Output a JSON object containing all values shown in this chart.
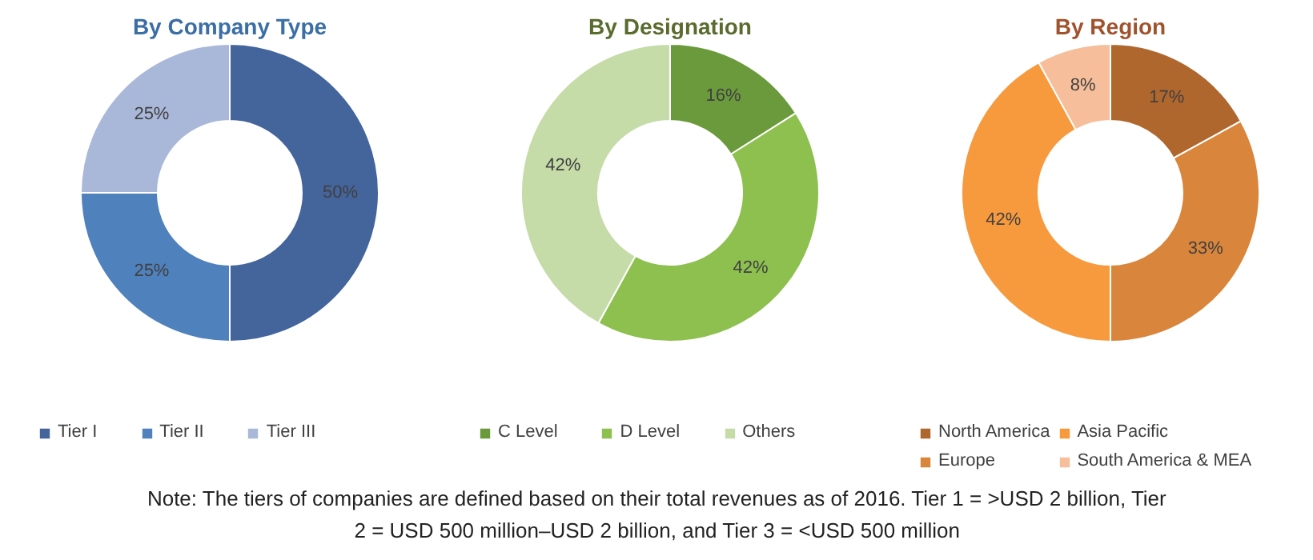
{
  "chart_data": [
    {
      "type": "donut",
      "title": "By Company Type",
      "categories": [
        "Tier I",
        "Tier II",
        "Tier III"
      ],
      "values": [
        50,
        25,
        25
      ],
      "colors": [
        "#44649c",
        "#4f81bd",
        "#a9b8d9"
      ],
      "value_labels": [
        "50%",
        "25%",
        "25%"
      ],
      "legend": "bottom"
    },
    {
      "type": "donut",
      "title": "By Designation",
      "categories": [
        "C Level",
        "D Level",
        "Others"
      ],
      "values": [
        16,
        42,
        42
      ],
      "colors": [
        "#6a9a3c",
        "#8dc04f",
        "#c5dba8"
      ],
      "value_labels": [
        "16%",
        "42%",
        "42%"
      ],
      "legend": "bottom"
    },
    {
      "type": "donut",
      "title": "By Region",
      "categories": [
        "North America",
        "Europe",
        "Asia Pacific",
        "South America & MEA"
      ],
      "values": [
        17,
        33,
        42,
        8
      ],
      "colors": [
        "#b0672e",
        "#d9853b",
        "#f79a3e",
        "#f6be9a"
      ],
      "value_labels": [
        "17%",
        "33%",
        "42%",
        "8%"
      ],
      "legend": "bottom",
      "annotations": [
        "Note: The tiers of companies are defined based on their total revenues as of 2016. Tier 1 = >USD 2 billion, Tier 2 = USD 500 million–USD 2 billion, and Tier 3 = <USD 500 million"
      ]
    }
  ]
}
